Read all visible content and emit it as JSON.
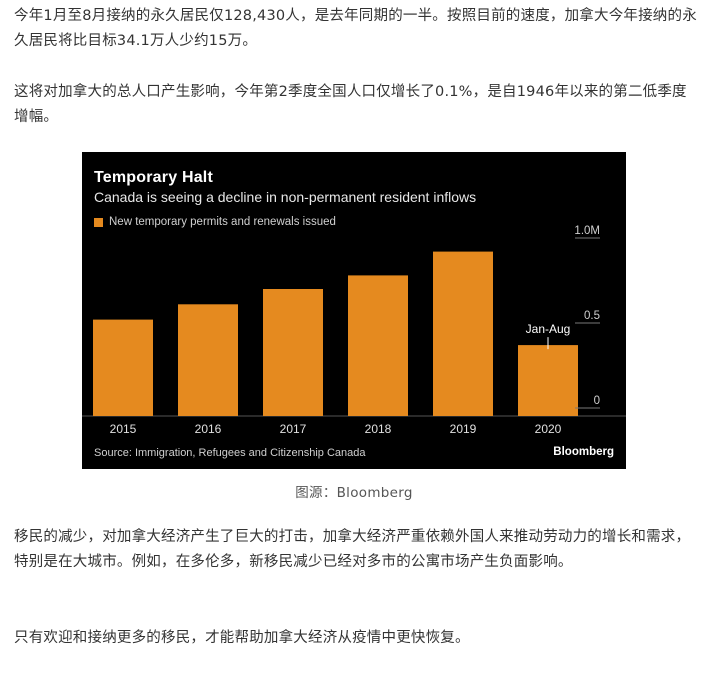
{
  "article": {
    "paragraph1": "今年1月至8月接纳的永久居民仅128,430人，是去年同期的一半。按照目前的速度，加拿大今年接纳的永久居民将比目标34.1万人少约15万。",
    "paragraph2": "这将对加拿大的总人口产生影响，今年第2季度全国人口仅增长了0.1%，是自1946年以来的第二低季度增幅。",
    "caption": "图源：Bloomberg",
    "paragraph3": "移民的减少，对加拿大经济产生了巨大的打击，加拿大经济严重依赖外国人来推动劳动力的增长和需求，特别是在大城市。例如，在多伦多，新移民减少已经对多市的公寓市场产生负面影响。",
    "paragraph4": "只有欢迎和接纳更多的移民，才能帮助加拿大经济从疫情中更快恢复。"
  },
  "chart_data": {
    "type": "bar",
    "title": "Temporary Halt",
    "subtitle": "Canada is seeing a decline in non-permanent resident inflows",
    "series_name": "New temporary permits and renewals issued",
    "categories": [
      "2015",
      "2016",
      "2017",
      "2018",
      "2019",
      "2020"
    ],
    "values": [
      0.52,
      0.61,
      0.7,
      0.78,
      0.92,
      0.37
    ],
    "ylim": [
      0,
      1.0
    ],
    "y_ticks": [
      {
        "value": 0,
        "label": "0"
      },
      {
        "value": 0.5,
        "label": "0.5"
      },
      {
        "value": 1.0,
        "label": "1.0M"
      }
    ],
    "annotation": {
      "category": "2020",
      "text": "Jan-Aug"
    },
    "source": "Source: Immigration, Refugees and Citizenship Canada",
    "brand": "Bloomberg",
    "bar_color": "#e58a1f",
    "background": "#000000",
    "grid": false,
    "legend_position": "top-left"
  }
}
